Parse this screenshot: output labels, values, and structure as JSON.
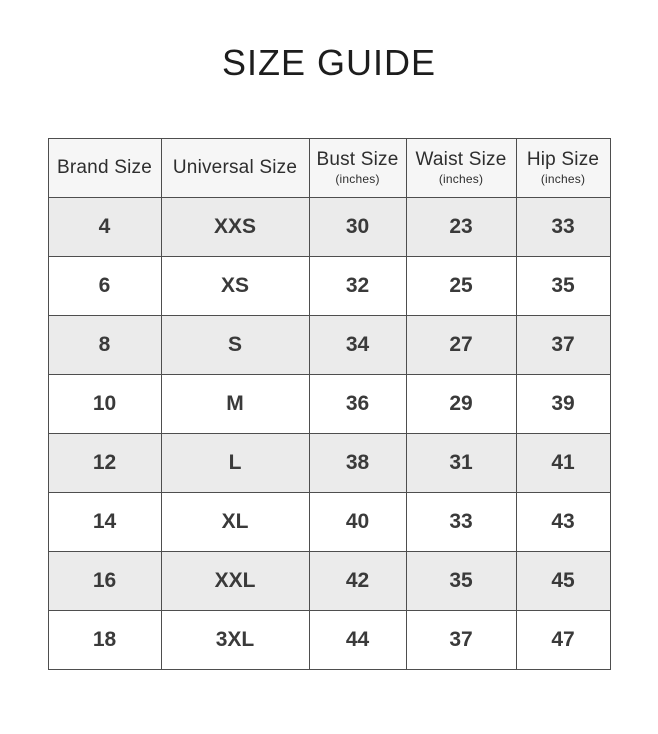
{
  "page": {
    "title": "SIZE GUIDE"
  },
  "table": {
    "columns": [
      {
        "label": "Brand Size",
        "sublabel": ""
      },
      {
        "label": "Universal Size",
        "sublabel": ""
      },
      {
        "label": "Bust Size",
        "sublabel": "(inches)"
      },
      {
        "label": "Waist Size",
        "sublabel": "(inches)"
      },
      {
        "label": "Hip Size",
        "sublabel": "(inches)"
      }
    ],
    "rows": [
      [
        "4",
        "XXS",
        "30",
        "23",
        "33"
      ],
      [
        "6",
        "XS",
        "32",
        "25",
        "35"
      ],
      [
        "8",
        "S",
        "34",
        "27",
        "37"
      ],
      [
        "10",
        "M",
        "36",
        "29",
        "39"
      ],
      [
        "12",
        "L",
        "38",
        "31",
        "41"
      ],
      [
        "14",
        "XL",
        "40",
        "33",
        "43"
      ],
      [
        "16",
        "XXL",
        "42",
        "35",
        "45"
      ],
      [
        "18",
        "3XL",
        "44",
        "37",
        "47"
      ]
    ]
  },
  "chart_data": {
    "type": "table",
    "title": "SIZE GUIDE",
    "columns": [
      "Brand Size",
      "Universal Size",
      "Bust Size (inches)",
      "Waist Size (inches)",
      "Hip Size (inches)"
    ],
    "rows": [
      [
        4,
        "XXS",
        30,
        23,
        33
      ],
      [
        6,
        "XS",
        32,
        25,
        35
      ],
      [
        8,
        "S",
        34,
        27,
        37
      ],
      [
        10,
        "M",
        36,
        29,
        39
      ],
      [
        12,
        "L",
        38,
        31,
        41
      ],
      [
        14,
        "XL",
        40,
        33,
        43
      ],
      [
        16,
        "XXL",
        42,
        35,
        45
      ],
      [
        18,
        "3XL",
        44,
        37,
        47
      ]
    ],
    "layout": {
      "alternating_row_shading": true,
      "first_data_row_shaded": true
    }
  },
  "colors": {
    "border": "#4e4e4e",
    "row_alt_bg": "#ebebeb",
    "header_bg": "#f6f6f6",
    "text": "#3a3a3a",
    "title": "#1d1d1d",
    "page_bg": "#ffffff"
  }
}
